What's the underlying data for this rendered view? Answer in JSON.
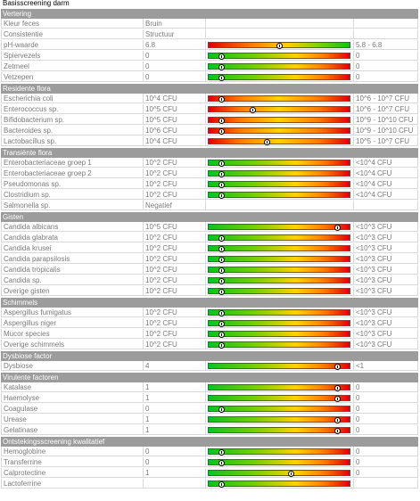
{
  "title": "Basisscreening darm",
  "sections": [
    {
      "name": "Vertering",
      "rows": [
        {
          "name": "Kleur feces",
          "value": "Bruin",
          "ref": "",
          "bar": false
        },
        {
          "name": "Consistentie",
          "value": "Structuur",
          "ref": "",
          "bar": false
        },
        {
          "name": "pH-waarde",
          "value": "6.8",
          "ref": "5.8 - 6.8",
          "bar": true,
          "scale": "rg",
          "level": 0.5
        },
        {
          "name": "Spiervezels",
          "value": "0",
          "ref": "0",
          "bar": true,
          "scale": "g2r",
          "level": 0.09
        },
        {
          "name": "Zetmeel",
          "value": "0",
          "ref": "0",
          "bar": true,
          "scale": "g2r",
          "level": 0.09
        },
        {
          "name": "Vetzepen",
          "value": "0",
          "ref": "0",
          "bar": true,
          "scale": "g2r",
          "level": 0.09
        }
      ]
    },
    {
      "name": "Residente flora",
      "rows": [
        {
          "name": "Escherichia coli",
          "value": "10^4 CFU",
          "ref": "10^6 - 10^7 CFU",
          "bar": true,
          "scale": "r2r",
          "level": 0.09
        },
        {
          "name": "Enterococcus sp.",
          "value": "10^5 CFU",
          "ref": "10^6 - 10^7 CFU",
          "bar": true,
          "scale": "r2r",
          "level": 0.31
        },
        {
          "name": "Bifidobacterium sp.",
          "value": "10^5 CFU",
          "ref": "10^9 - 10^10 CFU",
          "bar": true,
          "scale": "r2r",
          "level": 0.09
        },
        {
          "name": "Bacteroides sp.",
          "value": "10^6 CFU",
          "ref": "10^9 - 10^10 CFU",
          "bar": true,
          "scale": "r2r",
          "level": 0.09
        },
        {
          "name": "Lactobacillus sp.",
          "value": "10^4 CFU",
          "ref": "10^5 - 10^7 CFU",
          "bar": true,
          "scale": "r2r",
          "level": 0.41
        }
      ]
    },
    {
      "name": "Transiënte flora",
      "rows": [
        {
          "name": "Enterobacteriaceae groep 1",
          "value": "10^2 CFU",
          "ref": "<10^4 CFU",
          "bar": true,
          "scale": "g2r",
          "level": 0.09
        },
        {
          "name": "Enterobacteriaceae groep 2",
          "value": "10^2 CFU",
          "ref": "<10^4 CFU",
          "bar": true,
          "scale": "g2r",
          "level": 0.09
        },
        {
          "name": "Pseudomonas sp.",
          "value": "10^2 CFU",
          "ref": "<10^4 CFU",
          "bar": true,
          "scale": "g2r",
          "level": 0.09
        },
        {
          "name": "Clostridium sp.",
          "value": "10^2 CFU",
          "ref": "<10^4 CFU",
          "bar": true,
          "scale": "g2r",
          "level": 0.09
        },
        {
          "name": "Salmonella sp.",
          "value": "Negatief",
          "ref": "",
          "bar": false
        }
      ]
    },
    {
      "name": "Gisten",
      "rows": [
        {
          "name": "Candida albicans",
          "value": "10^5 CFU",
          "ref": "<10^3 CFU",
          "bar": true,
          "scale": "g2r",
          "level": 0.91
        },
        {
          "name": "Candida glabrata",
          "value": "10^2 CFU",
          "ref": "<10^3 CFU",
          "bar": true,
          "scale": "g2r",
          "level": 0.09
        },
        {
          "name": "Candida krusei",
          "value": "10^2 CFU",
          "ref": "<10^3 CFU",
          "bar": true,
          "scale": "g2r",
          "level": 0.09
        },
        {
          "name": "Candida parapsilosis",
          "value": "10^2 CFU",
          "ref": "<10^3 CFU",
          "bar": true,
          "scale": "g2r",
          "level": 0.09
        },
        {
          "name": "Candida tropicalis",
          "value": "10^2 CFU",
          "ref": "<10^3 CFU",
          "bar": true,
          "scale": "g2r",
          "level": 0.09
        },
        {
          "name": "Candida sp.",
          "value": "10^2 CFU",
          "ref": "<10^3 CFU",
          "bar": true,
          "scale": "g2r",
          "level": 0.09
        },
        {
          "name": "Overige gisten",
          "value": "10^2 CFU",
          "ref": "<10^3 CFU",
          "bar": true,
          "scale": "g2r",
          "level": 0.09
        }
      ]
    },
    {
      "name": "Schimmels",
      "rows": [
        {
          "name": "Aspergillus fumigatus",
          "value": "10^2 CFU",
          "ref": "<10^3 CFU",
          "bar": true,
          "scale": "g2r",
          "level": 0.09
        },
        {
          "name": "Aspergillus niger",
          "value": "10^2 CFU",
          "ref": "<10^3 CFU",
          "bar": true,
          "scale": "g2r",
          "level": 0.09
        },
        {
          "name": "Mucor species",
          "value": "10^2 CFU",
          "ref": "<10^3 CFU",
          "bar": true,
          "scale": "g2r",
          "level": 0.09
        },
        {
          "name": "Overige schimmels",
          "value": "10^2 CFU",
          "ref": "<10^3 CFU",
          "bar": true,
          "scale": "g2r",
          "level": 0.09
        }
      ]
    },
    {
      "name": "Dysbiose factor",
      "rows": [
        {
          "name": "Dysbiose",
          "value": "4",
          "ref": "<1",
          "bar": true,
          "scale": "g2r",
          "level": 0.91
        }
      ]
    },
    {
      "name": "Virulente factoren",
      "rows": [
        {
          "name": "Katalase",
          "value": "1",
          "ref": "0",
          "bar": true,
          "scale": "g2r",
          "level": 0.91
        },
        {
          "name": "Haemolyse",
          "value": "1",
          "ref": "0",
          "bar": true,
          "scale": "g2r",
          "level": 0.91
        },
        {
          "name": "Coagulase",
          "value": "0",
          "ref": "0",
          "bar": true,
          "scale": "g2r",
          "level": 0.09
        },
        {
          "name": "Urease",
          "value": "1",
          "ref": "0",
          "bar": true,
          "scale": "g2r",
          "level": 0.91
        },
        {
          "name": "Gelatinase",
          "value": "1",
          "ref": "0",
          "bar": true,
          "scale": "g2r",
          "level": 0.91
        }
      ]
    },
    {
      "name": "Ontstekingsscreening kwalitatief",
      "rows": [
        {
          "name": "Hemoglobine",
          "value": "0",
          "ref": "0",
          "bar": true,
          "scale": "g2r",
          "level": 0.09
        },
        {
          "name": "Transferrine",
          "value": "0",
          "ref": "0",
          "bar": true,
          "scale": "g2r",
          "level": 0.09
        },
        {
          "name": "Calprotectine",
          "value": "1",
          "ref": "0",
          "bar": true,
          "scale": "g2r",
          "level": 0.58
        },
        {
          "name": "Lactoferrine",
          "value": "",
          "ref": "",
          "bar": true,
          "scale": "g2r",
          "level": 0.09
        }
      ]
    }
  ]
}
